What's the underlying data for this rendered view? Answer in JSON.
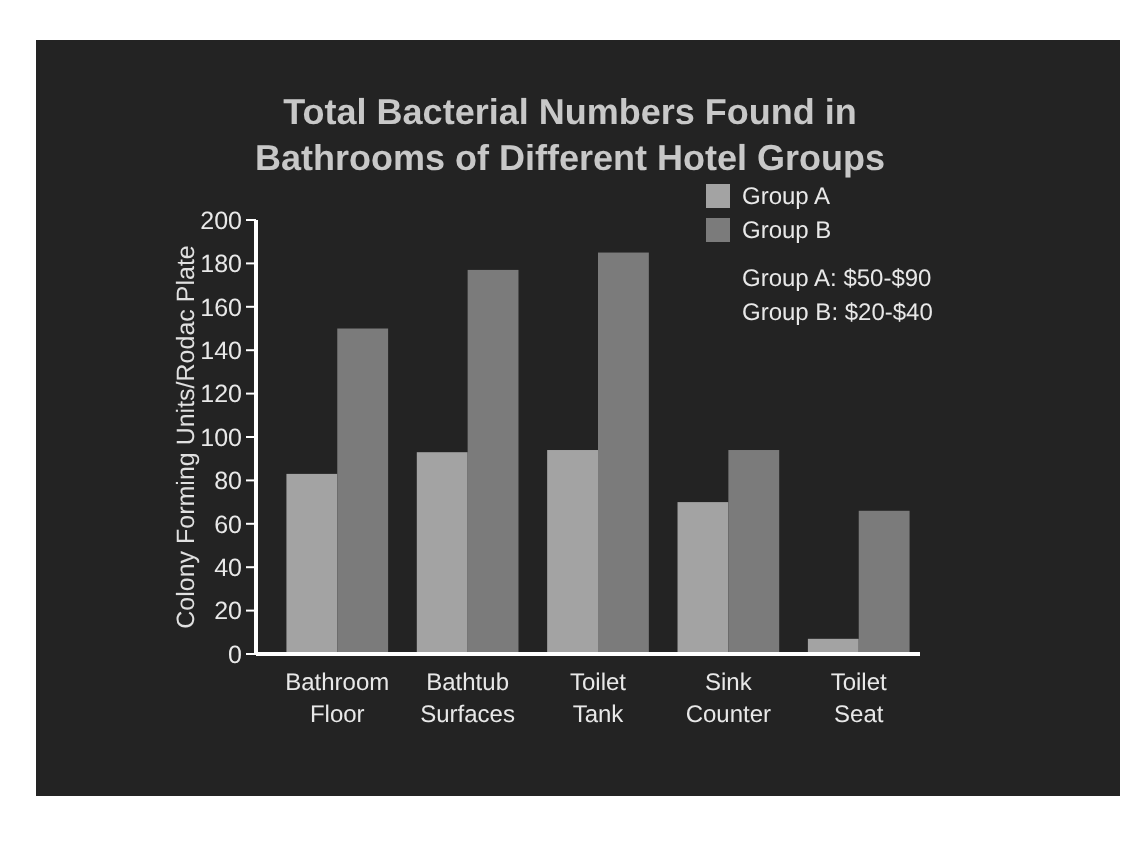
{
  "chart_data": {
    "type": "bar",
    "title": "Total Bacterial Numbers Found in\nBathrooms of Different Hotel Groups",
    "ylabel": "Colony Forming Units/Rodac Plate",
    "categories": [
      "Bathroom Floor",
      "Bathtub Surfaces",
      "Toilet Tank",
      "Sink Counter",
      "Toilet Seat"
    ],
    "series": [
      {
        "name": "Group A",
        "color": "#a3a3a3",
        "values": [
          83,
          93,
          94,
          70,
          7
        ]
      },
      {
        "name": "Group B",
        "color": "#7b7b7b",
        "values": [
          150,
          177,
          185,
          94,
          66
        ]
      }
    ],
    "ylim": [
      0,
      200
    ],
    "yticks": [
      0,
      20,
      40,
      60,
      80,
      100,
      120,
      140,
      160,
      180,
      200
    ],
    "grid": false,
    "legend": "top right",
    "annotations": [
      "Group A: $50-$90",
      "Group B: $20-$40"
    ]
  }
}
